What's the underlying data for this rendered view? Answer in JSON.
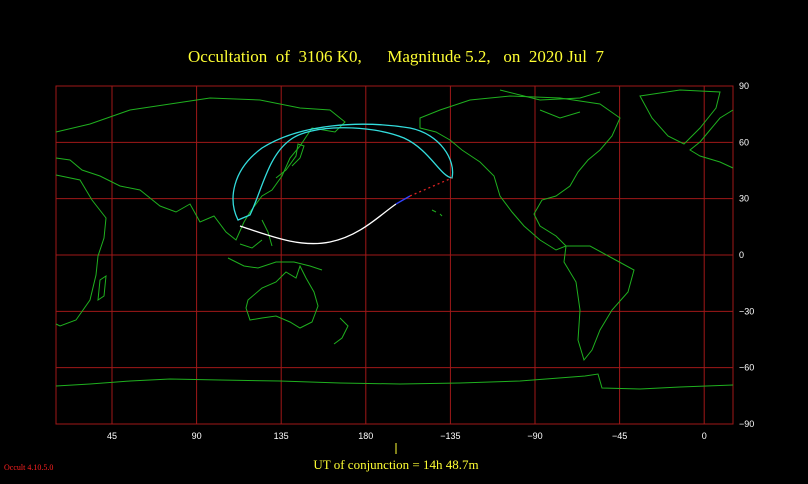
{
  "title": "Occultation  of  3106 K0,      Magnitude 5.2,   on  2020 Jul  7",
  "longitude_labels": [
    "45",
    "90",
    "135",
    "180",
    "−135",
    "−90",
    "−45",
    "0"
  ],
  "latitude_labels": [
    "90",
    "60",
    "30",
    "0",
    "−30",
    "−60",
    "−90"
  ],
  "conjunction": "UT of conjunction = 14h 48.7m",
  "version": "Occult 4.10.5.0"
}
